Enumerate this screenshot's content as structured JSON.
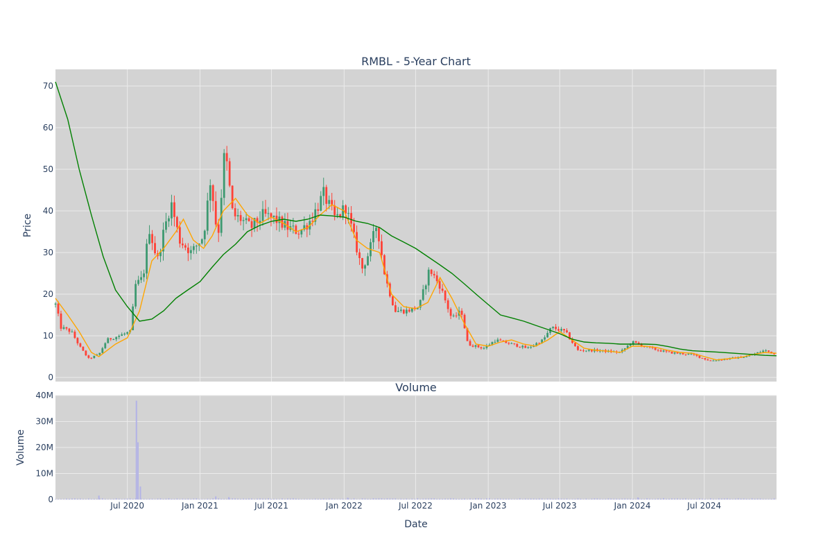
{
  "chart_data": [
    {
      "type": "candlestick",
      "title": "RMBL - 5-Year Chart",
      "ylabel": "Price",
      "ylim": [
        -1,
        74
      ],
      "y_ticks": [
        0,
        10,
        20,
        30,
        40,
        50,
        60,
        70
      ],
      "x_range": [
        "2020-01-01",
        "2024-12-31"
      ],
      "grid": true,
      "background": "#d3d3d3",
      "colors": {
        "up": "#3d9970",
        "down": "#ff4136",
        "ma_short": "#ffa500",
        "ma_long": "#008000"
      },
      "price_path": [
        [
          "2020-01-01",
          17.5
        ],
        [
          "2020-01-15",
          12
        ],
        [
          "2020-02-10",
          11
        ],
        [
          "2020-03-05",
          7
        ],
        [
          "2020-03-25",
          4.5
        ],
        [
          "2020-04-20",
          5.5
        ],
        [
          "2020-05-10",
          9
        ],
        [
          "2020-06-10",
          10
        ],
        [
          "2020-07-10",
          11
        ],
        [
          "2020-07-20",
          22
        ],
        [
          "2020-08-10",
          24
        ],
        [
          "2020-08-25",
          36
        ],
        [
          "2020-09-15",
          28
        ],
        [
          "2020-10-01",
          35
        ],
        [
          "2020-10-20",
          42
        ],
        [
          "2020-11-10",
          33
        ],
        [
          "2020-12-10",
          30
        ],
        [
          "2021-01-10",
          34
        ],
        [
          "2021-01-28",
          48
        ],
        [
          "2021-02-15",
          33
        ],
        [
          "2021-03-05",
          55
        ],
        [
          "2021-03-25",
          39
        ],
        [
          "2021-04-15",
          38
        ],
        [
          "2021-05-10",
          36
        ],
        [
          "2021-06-10",
          39
        ],
        [
          "2021-07-10",
          38
        ],
        [
          "2021-08-10",
          36
        ],
        [
          "2021-09-10",
          35
        ],
        [
          "2021-10-10",
          38
        ],
        [
          "2021-11-10",
          44
        ],
        [
          "2021-12-10",
          38
        ],
        [
          "2022-01-05",
          41
        ],
        [
          "2022-01-25",
          34
        ],
        [
          "2022-02-15",
          26
        ],
        [
          "2022-03-05",
          30
        ],
        [
          "2022-03-25",
          37
        ],
        [
          "2022-04-15",
          24
        ],
        [
          "2022-05-10",
          16
        ],
        [
          "2022-06-10",
          16
        ],
        [
          "2022-07-10",
          17
        ],
        [
          "2022-08-05",
          26
        ],
        [
          "2022-09-01",
          22
        ],
        [
          "2022-10-01",
          14
        ],
        [
          "2022-10-25",
          16
        ],
        [
          "2022-11-10",
          8
        ],
        [
          "2022-12-20",
          7
        ],
        [
          "2023-01-20",
          9
        ],
        [
          "2023-03-01",
          8
        ],
        [
          "2023-04-10",
          7
        ],
        [
          "2023-05-20",
          9
        ],
        [
          "2023-06-10",
          12
        ],
        [
          "2023-07-15",
          11
        ],
        [
          "2023-08-15",
          6.5
        ],
        [
          "2023-10-01",
          6.5
        ],
        [
          "2023-12-01",
          6
        ],
        [
          "2024-01-01",
          8.5
        ],
        [
          "2024-02-15",
          7
        ],
        [
          "2024-04-01",
          6
        ],
        [
          "2024-06-01",
          5.5
        ],
        [
          "2024-07-15",
          4
        ],
        [
          "2024-09-01",
          4.5
        ],
        [
          "2024-10-15",
          5
        ],
        [
          "2024-12-01",
          6.5
        ],
        [
          "2024-12-31",
          5.5
        ]
      ],
      "ma_short": [
        [
          "2020-01-01",
          19
        ],
        [
          "2020-02-01",
          15
        ],
        [
          "2020-03-01",
          11
        ],
        [
          "2020-04-01",
          6
        ],
        [
          "2020-04-20",
          5
        ],
        [
          "2020-06-01",
          8
        ],
        [
          "2020-07-01",
          9.5
        ],
        [
          "2020-08-01",
          16
        ],
        [
          "2020-09-01",
          28
        ],
        [
          "2020-10-01",
          31
        ],
        [
          "2020-11-01",
          35
        ],
        [
          "2020-11-20",
          38
        ],
        [
          "2020-12-15",
          33
        ],
        [
          "2021-01-10",
          31
        ],
        [
          "2021-02-01",
          34
        ],
        [
          "2021-03-01",
          40
        ],
        [
          "2021-04-01",
          43
        ],
        [
          "2021-05-01",
          39
        ],
        [
          "2021-06-01",
          37
        ],
        [
          "2021-07-01",
          38.5
        ],
        [
          "2021-08-01",
          37
        ],
        [
          "2021-09-01",
          35
        ],
        [
          "2021-10-01",
          36
        ],
        [
          "2021-11-01",
          39
        ],
        [
          "2021-12-01",
          41.5
        ],
        [
          "2022-01-01",
          40
        ],
        [
          "2022-02-01",
          33
        ],
        [
          "2022-03-01",
          31
        ],
        [
          "2022-04-01",
          30
        ],
        [
          "2022-05-01",
          20
        ],
        [
          "2022-06-01",
          17
        ],
        [
          "2022-07-01",
          16.5
        ],
        [
          "2022-08-01",
          18
        ],
        [
          "2022-09-01",
          24
        ],
        [
          "2022-10-01",
          19
        ],
        [
          "2022-11-01",
          13
        ],
        [
          "2022-12-01",
          8
        ],
        [
          "2023-01-01",
          7.5
        ],
        [
          "2023-02-01",
          8.5
        ],
        [
          "2023-03-01",
          9
        ],
        [
          "2023-04-01",
          8
        ],
        [
          "2023-05-01",
          7.5
        ],
        [
          "2023-06-01",
          9
        ],
        [
          "2023-07-01",
          11
        ],
        [
          "2023-08-01",
          9
        ],
        [
          "2023-09-01",
          7
        ],
        [
          "2023-10-01",
          6.5
        ],
        [
          "2023-11-01",
          6.3
        ],
        [
          "2023-12-01",
          6
        ],
        [
          "2024-01-01",
          7.5
        ],
        [
          "2024-02-01",
          7.5
        ],
        [
          "2024-03-01",
          7.2
        ],
        [
          "2024-04-01",
          6.5
        ],
        [
          "2024-05-01",
          6
        ],
        [
          "2024-06-01",
          5.8
        ],
        [
          "2024-07-01",
          5
        ],
        [
          "2024-08-01",
          4.2
        ],
        [
          "2024-09-01",
          4.5
        ],
        [
          "2024-10-01",
          4.8
        ],
        [
          "2024-11-01",
          5.5
        ],
        [
          "2024-12-01",
          6
        ],
        [
          "2024-12-31",
          5.8
        ]
      ],
      "ma_long": [
        [
          "2020-01-01",
          71
        ],
        [
          "2020-02-01",
          62
        ],
        [
          "2020-03-01",
          50
        ],
        [
          "2020-04-01",
          39
        ],
        [
          "2020-05-01",
          29
        ],
        [
          "2020-06-01",
          21
        ],
        [
          "2020-07-01",
          17
        ],
        [
          "2020-08-01",
          13.5
        ],
        [
          "2020-09-01",
          14
        ],
        [
          "2020-10-01",
          16
        ],
        [
          "2020-11-01",
          19
        ],
        [
          "2020-12-01",
          21
        ],
        [
          "2021-01-01",
          23
        ],
        [
          "2021-02-01",
          26.5
        ],
        [
          "2021-03-01",
          29.5
        ],
        [
          "2021-04-01",
          32
        ],
        [
          "2021-05-01",
          35
        ],
        [
          "2021-06-01",
          36.5
        ],
        [
          "2021-07-01",
          37.5
        ],
        [
          "2021-08-01",
          38
        ],
        [
          "2021-09-01",
          37.5
        ],
        [
          "2021-10-01",
          38
        ],
        [
          "2021-11-01",
          39
        ],
        [
          "2021-12-01",
          38.8
        ],
        [
          "2022-01-01",
          38.5
        ],
        [
          "2022-02-01",
          37.5
        ],
        [
          "2022-03-01",
          37
        ],
        [
          "2022-04-01",
          36
        ],
        [
          "2022-05-01",
          34
        ],
        [
          "2022-06-01",
          32.5
        ],
        [
          "2022-07-01",
          31
        ],
        [
          "2022-08-01",
          29
        ],
        [
          "2022-09-01",
          27
        ],
        [
          "2022-10-01",
          25
        ],
        [
          "2022-11-01",
          22.5
        ],
        [
          "2022-12-01",
          20
        ],
        [
          "2023-01-01",
          17.5
        ],
        [
          "2023-02-01",
          15
        ],
        [
          "2023-03-01",
          14.3
        ],
        [
          "2023-04-01",
          13.5
        ],
        [
          "2023-05-01",
          12.5
        ],
        [
          "2023-06-01",
          11.5
        ],
        [
          "2023-07-01",
          10.5
        ],
        [
          "2023-08-01",
          9.2
        ],
        [
          "2023-09-01",
          8.5
        ],
        [
          "2023-10-01",
          8.3
        ],
        [
          "2023-11-01",
          8.2
        ],
        [
          "2023-12-01",
          8
        ],
        [
          "2024-01-01",
          8
        ],
        [
          "2024-02-01",
          8
        ],
        [
          "2024-03-01",
          7.9
        ],
        [
          "2024-04-01",
          7.4
        ],
        [
          "2024-05-01",
          6.8
        ],
        [
          "2024-06-01",
          6.4
        ],
        [
          "2024-08-01",
          6.1
        ],
        [
          "2024-10-01",
          5.7
        ],
        [
          "2024-12-01",
          5.3
        ],
        [
          "2024-12-31",
          5.2
        ]
      ]
    },
    {
      "type": "bar",
      "title": "Volume",
      "xlabel": "Date",
      "ylabel": "Volume",
      "ylim": [
        0,
        40000000
      ],
      "y_ticks": [
        0,
        10000000,
        20000000,
        30000000,
        40000000
      ],
      "y_tick_labels": [
        "0",
        "10M",
        "20M",
        "30M",
        "40M"
      ],
      "x_ticks": [
        "2020-07-01",
        "2021-01-01",
        "2021-07-01",
        "2022-01-01",
        "2022-07-01",
        "2023-01-01",
        "2023-07-01",
        "2024-01-01",
        "2024-07-01"
      ],
      "x_tick_labels": [
        "Jul 2020",
        "Jan 2021",
        "Jul 2021",
        "Jan 2022",
        "Jul 2022",
        "Jan 2023",
        "Jul 2023",
        "Jan 2024",
        "Jul 2024"
      ],
      "background": "#d3d3d3",
      "bar_color": "#b3b3e6",
      "spikes": [
        [
          "2020-04-20",
          1500000
        ],
        [
          "2020-07-24",
          38000000
        ],
        [
          "2020-07-28",
          22000000
        ],
        [
          "2020-08-03",
          5000000
        ],
        [
          "2021-02-10",
          1200000
        ],
        [
          "2021-03-15",
          900000
        ],
        [
          "2022-01-10",
          700000
        ],
        [
          "2024-01-15",
          800000
        ],
        [
          "2024-03-20",
          500000
        ]
      ],
      "baseline": 300000
    }
  ]
}
